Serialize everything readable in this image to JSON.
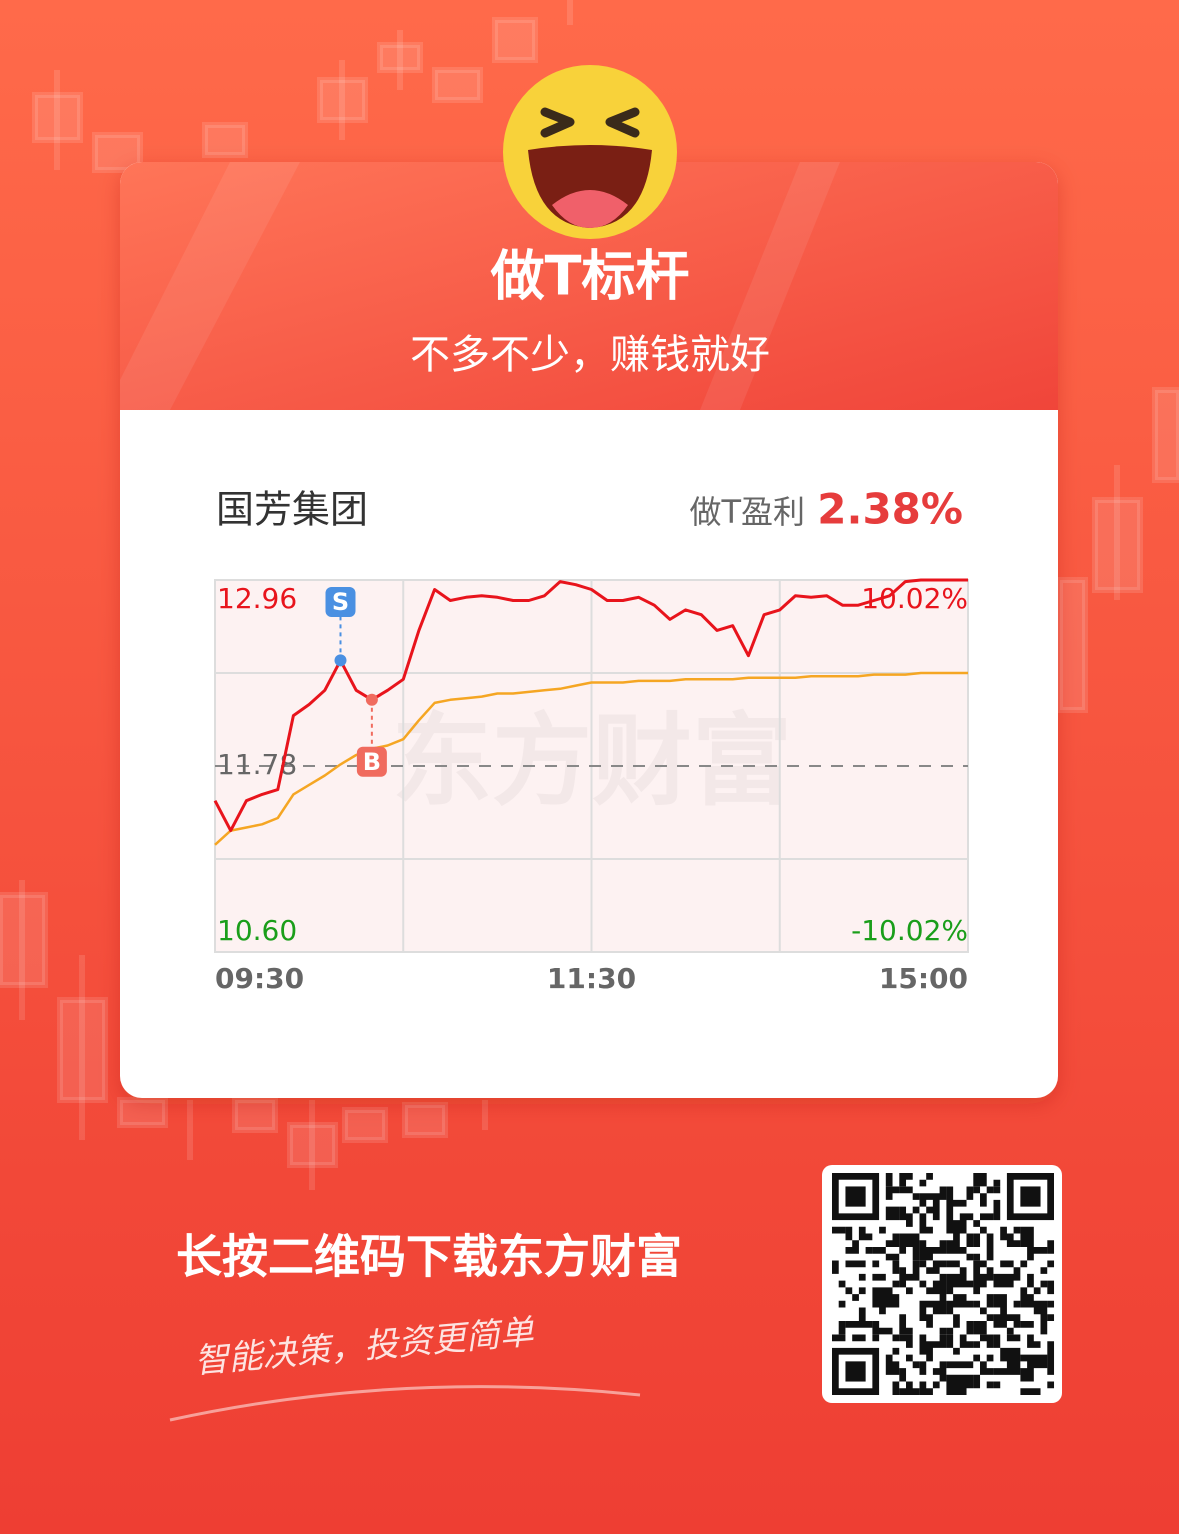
{
  "header": {
    "title": "做T标杆",
    "subtitle": "不多不少，赚钱就好"
  },
  "stock": {
    "name": "国芳集团",
    "profit_label": "做T盈利",
    "profit": "2.38%"
  },
  "chart_data": {
    "type": "line",
    "watermark": "东方财富",
    "categories": [
      "09:30",
      null,
      null,
      null,
      null,
      null,
      null,
      null,
      null,
      null,
      null,
      null,
      null,
      null,
      null,
      null,
      null,
      null,
      null,
      null,
      null,
      null,
      null,
      null,
      "11:30",
      null,
      null,
      null,
      null,
      null,
      null,
      null,
      null,
      null,
      null,
      null,
      null,
      null,
      null,
      null,
      null,
      null,
      null,
      null,
      null,
      null,
      null,
      null,
      "15:00"
    ],
    "series": [
      {
        "color": "#e8141c",
        "values": [
          11.56,
          11.37,
          11.56,
          11.6,
          11.63,
          12.1,
          12.17,
          12.26,
          12.45,
          12.26,
          12.2,
          12.26,
          12.33,
          12.64,
          12.9,
          12.83,
          12.85,
          12.86,
          12.85,
          12.83,
          12.83,
          12.86,
          12.95,
          12.93,
          12.9,
          12.83,
          12.83,
          12.85,
          12.8,
          12.71,
          12.77,
          12.74,
          12.64,
          12.67,
          12.48,
          12.74,
          12.77,
          12.86,
          12.85,
          12.86,
          12.8,
          12.8,
          12.83,
          12.86,
          12.95,
          12.96,
          12.96,
          12.96,
          12.96
        ]
      },
      {
        "color": "#f5a623",
        "values": [
          11.28,
          11.37,
          11.39,
          11.41,
          11.45,
          11.6,
          11.66,
          11.72,
          11.79,
          11.85,
          11.89,
          11.91,
          11.95,
          12.07,
          12.18,
          12.2,
          12.21,
          12.22,
          12.24,
          12.24,
          12.25,
          12.26,
          12.27,
          12.29,
          12.31,
          12.31,
          12.31,
          12.32,
          12.32,
          12.32,
          12.33,
          12.33,
          12.33,
          12.33,
          12.34,
          12.34,
          12.34,
          12.34,
          12.35,
          12.35,
          12.35,
          12.35,
          12.36,
          12.36,
          12.36,
          12.37,
          12.37,
          12.37,
          12.37
        ]
      }
    ],
    "ylim": [
      10.6,
      12.96
    ],
    "yticks": [
      12.96,
      11.78,
      {
        "value": 10.6,
        "label": "10.60"
      }
    ],
    "y2lim": [
      -10.02,
      10.02
    ],
    "y2ticks": [
      {
        "value": 10.02,
        "label": "10.02%"
      },
      {
        "value": -10.02,
        "label": "-10.02%"
      }
    ],
    "annotations": [
      {
        "text": "S",
        "point": 8,
        "color": "#4a90e2"
      },
      {
        "text": "B",
        "point": 10,
        "color": "#f06b5e"
      }
    ]
  },
  "footer": {
    "cta": "长按二维码下载东方财富",
    "slogan": "智能决策，投资更简单"
  }
}
